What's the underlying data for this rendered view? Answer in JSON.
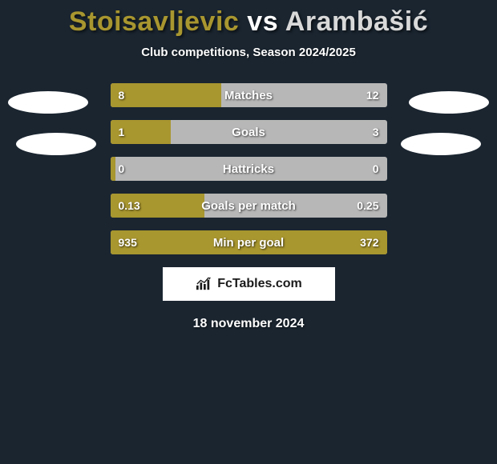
{
  "title": {
    "player1": "Stoisavljevic",
    "vs": "vs",
    "player2": "Arambašić",
    "player1_color": "#a8962f",
    "vs_color": "#ffffff",
    "player2_color": "#d9d9d9"
  },
  "subtitle": "Club competitions, Season 2024/2025",
  "colors": {
    "background": "#1a2530",
    "bar_fill": "#a8962f",
    "bar_bg": "#b7b7b7",
    "avatar": "#ffffff",
    "text": "#ffffff"
  },
  "bars": [
    {
      "label": "Matches",
      "left": "8",
      "right": "12",
      "fill_pct": 40
    },
    {
      "label": "Goals",
      "left": "1",
      "right": "3",
      "fill_pct": 22
    },
    {
      "label": "Hattricks",
      "left": "0",
      "right": "0",
      "fill_pct": 2
    },
    {
      "label": "Goals per match",
      "left": "0.13",
      "right": "0.25",
      "fill_pct": 34
    },
    {
      "label": "Min per goal",
      "left": "935",
      "right": "372",
      "fill_pct": 100
    }
  ],
  "logo": {
    "text": "FcTables.com",
    "icon_color": "#1a1a1a"
  },
  "date": "18 november 2024"
}
